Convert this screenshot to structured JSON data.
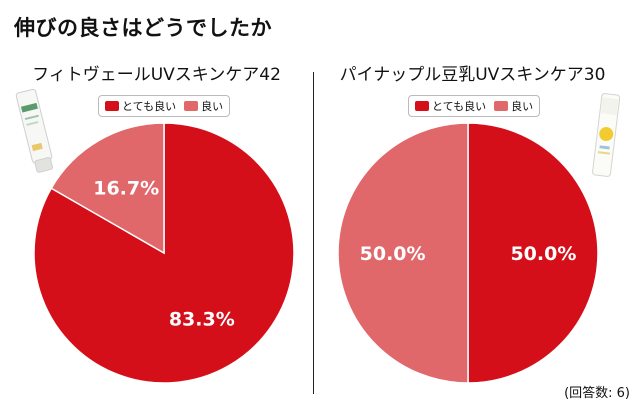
{
  "title": "伸びの良さはどうでしたか",
  "note": "(回答数: 6)",
  "colors": {
    "very_good": "#d50f1a",
    "good": "#e0676a"
  },
  "chart_data": [
    {
      "type": "pie",
      "title": "フィトヴェールUVスキンケア42",
      "categories": [
        "とても良い",
        "良い"
      ],
      "values": [
        83.3,
        16.7
      ],
      "labels": [
        "83.3%",
        "16.7%"
      ],
      "legend": "top",
      "product_icon": "tube-icon"
    },
    {
      "type": "pie",
      "title": "パイナップル豆乳UVスキンケア30",
      "categories": [
        "とても良い",
        "良い"
      ],
      "values": [
        50.0,
        50.0
      ],
      "labels": [
        "50.0%",
        "50.0%"
      ],
      "legend": "top",
      "product_icon": "bottle-icon"
    }
  ]
}
